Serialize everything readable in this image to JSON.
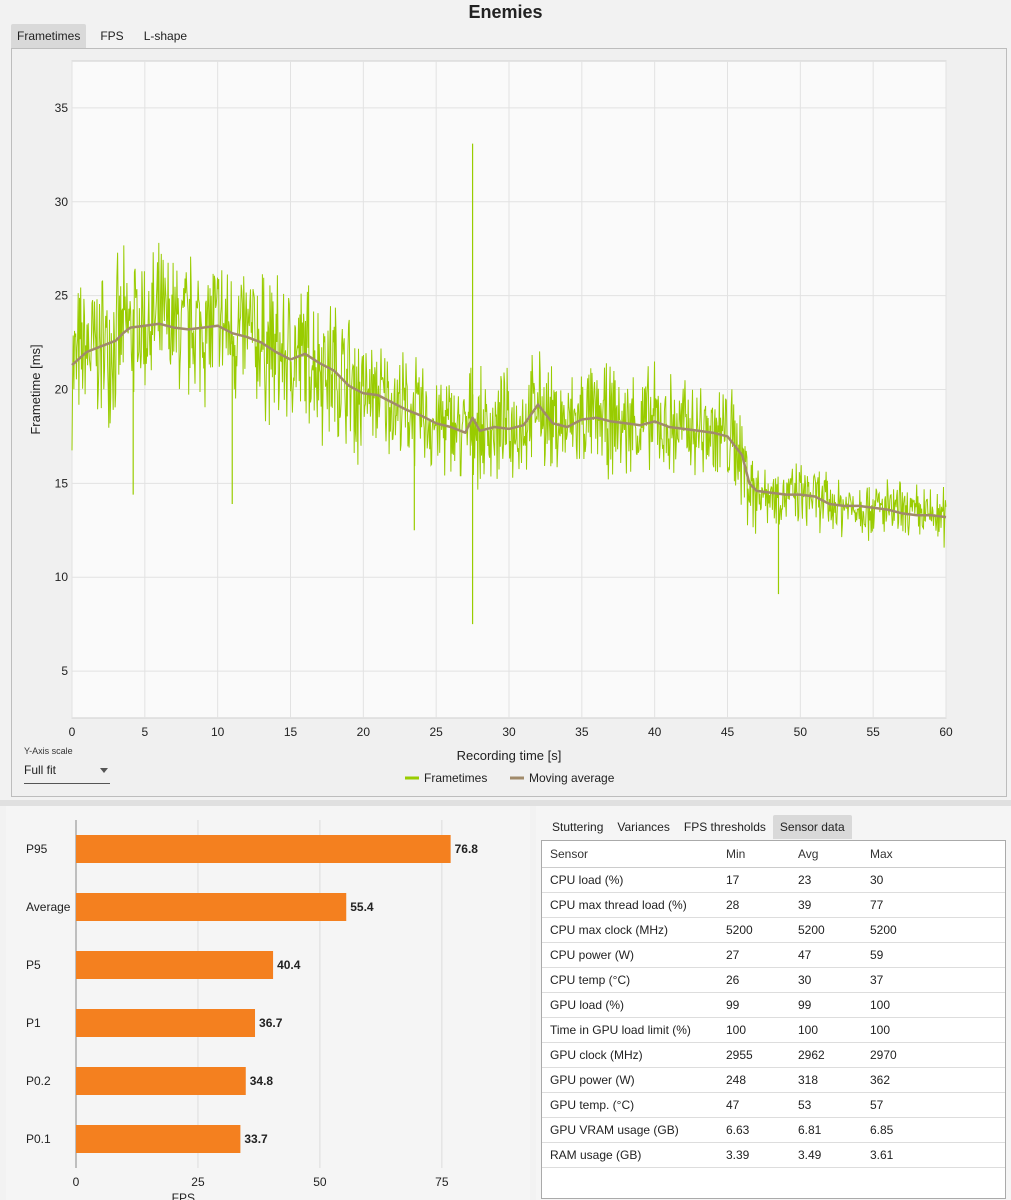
{
  "title": "Enemies",
  "top_tabs": [
    {
      "label": "Frametimes",
      "active": true
    },
    {
      "label": "FPS",
      "active": false
    },
    {
      "label": "L-shape",
      "active": false
    }
  ],
  "y_axis_scale": {
    "label": "Y-Axis scale",
    "value": "Full fit"
  },
  "colors": {
    "frametimes": "#99cc00",
    "moving_average": "#a08a6a",
    "bars": "#f4801f"
  },
  "chart_data": [
    {
      "type": "line",
      "xlabel": "Recording time [s]",
      "ylabel": "Frametime [ms]",
      "xlim": [
        0,
        60
      ],
      "ylim": [
        2.5,
        37.5
      ],
      "x_ticks": [
        0,
        5,
        10,
        15,
        20,
        25,
        30,
        35,
        40,
        45,
        50,
        55,
        60
      ],
      "y_ticks": [
        5,
        10,
        15,
        20,
        25,
        30,
        35
      ],
      "grid": true,
      "legend": "bottom-center",
      "series": [
        {
          "name": "Frametimes",
          "color": "#99cc00",
          "x": [
            0,
            1,
            2,
            3,
            3.5,
            4,
            5,
            6,
            7,
            8,
            9,
            10,
            11,
            12,
            13,
            14,
            15,
            16,
            17,
            18,
            19,
            20,
            21,
            22,
            23,
            24,
            25,
            26,
            27,
            27.5,
            28,
            29,
            30,
            31,
            32,
            33,
            34,
            35,
            36,
            37,
            38,
            39,
            40,
            41,
            42,
            43,
            44,
            45,
            46,
            46.5,
            47,
            48,
            49,
            50,
            51,
            52,
            53,
            54,
            55,
            56,
            57,
            58,
            59,
            60
          ],
          "y": [
            21.3,
            22.0,
            22.3,
            22.6,
            23.0,
            23.3,
            23.4,
            23.5,
            23.3,
            23.2,
            23.3,
            23.4,
            23.0,
            22.8,
            22.5,
            22.0,
            21.6,
            21.9,
            21.4,
            21.0,
            20.2,
            19.8,
            19.7,
            19.3,
            18.9,
            18.6,
            18.2,
            18.0,
            17.7,
            18.5,
            17.8,
            18.0,
            17.9,
            18.1,
            19.2,
            18.2,
            18.0,
            18.4,
            18.5,
            18.3,
            18.2,
            18.1,
            18.3,
            18.0,
            17.9,
            17.8,
            17.7,
            17.5,
            16.5,
            15.0,
            14.6,
            14.5,
            14.4,
            14.4,
            14.3,
            13.9,
            13.8,
            13.8,
            13.7,
            13.6,
            13.4,
            13.3,
            13.3,
            13.2
          ]
        },
        {
          "name": "Moving average",
          "color": "#a08a6a",
          "x": [
            0,
            1,
            2,
            3,
            3.5,
            4,
            5,
            6,
            7,
            8,
            9,
            10,
            11,
            12,
            13,
            14,
            15,
            16,
            17,
            18,
            19,
            20,
            21,
            22,
            23,
            24,
            25,
            26,
            27,
            27.5,
            28,
            29,
            30,
            31,
            32,
            33,
            34,
            35,
            36,
            37,
            38,
            39,
            40,
            41,
            42,
            43,
            44,
            45,
            46,
            46.5,
            47,
            48,
            49,
            50,
            51,
            52,
            53,
            54,
            55,
            56,
            57,
            58,
            59,
            60
          ],
          "y": [
            21.3,
            22.0,
            22.3,
            22.6,
            23.0,
            23.3,
            23.4,
            23.5,
            23.3,
            23.2,
            23.3,
            23.4,
            23.0,
            22.8,
            22.5,
            22.0,
            21.6,
            21.9,
            21.4,
            21.0,
            20.2,
            19.8,
            19.7,
            19.3,
            18.9,
            18.6,
            18.2,
            18.0,
            17.7,
            18.5,
            17.8,
            18.0,
            17.9,
            18.1,
            19.2,
            18.2,
            18.0,
            18.4,
            18.5,
            18.3,
            18.2,
            18.1,
            18.3,
            18.0,
            17.9,
            17.8,
            17.7,
            17.5,
            16.5,
            15.0,
            14.6,
            14.5,
            14.4,
            14.4,
            14.3,
            13.9,
            13.8,
            13.8,
            13.7,
            13.6,
            13.4,
            13.3,
            13.3,
            13.2
          ]
        }
      ]
    },
    {
      "type": "bar",
      "orientation": "horizontal",
      "categories": [
        "P95",
        "Average",
        "P5",
        "P1",
        "P0.2",
        "P0.1"
      ],
      "values": [
        76.8,
        55.4,
        40.4,
        36.7,
        34.8,
        33.7
      ],
      "xlabel": "FPS",
      "xlim": [
        0,
        82
      ],
      "x_ticks": [
        0,
        25,
        50,
        75
      ],
      "grid": true
    }
  ],
  "sensor_tabs": [
    {
      "label": "Stuttering",
      "active": false
    },
    {
      "label": "Variances",
      "active": false
    },
    {
      "label": "FPS thresholds",
      "active": false
    },
    {
      "label": "Sensor data",
      "active": true
    }
  ],
  "sensor_table": {
    "headers": [
      "Sensor",
      "Min",
      "Avg",
      "Max"
    ],
    "rows": [
      [
        "CPU load (%)",
        "17",
        "23",
        "30"
      ],
      [
        "CPU max thread load (%)",
        "28",
        "39",
        "77"
      ],
      [
        "CPU max clock (MHz)",
        "5200",
        "5200",
        "5200"
      ],
      [
        "CPU power (W)",
        "27",
        "47",
        "59"
      ],
      [
        "CPU temp (°C)",
        "26",
        "30",
        "37"
      ],
      [
        "GPU load (%)",
        "99",
        "99",
        "100"
      ],
      [
        "Time in GPU load limit (%)",
        "100",
        "100",
        "100"
      ],
      [
        "GPU clock (MHz)",
        "2955",
        "2962",
        "2970"
      ],
      [
        "GPU power (W)",
        "248",
        "318",
        "362"
      ],
      [
        "GPU temp. (°C)",
        "47",
        "53",
        "57"
      ],
      [
        "GPU VRAM usage (GB)",
        "6.63",
        "6.81",
        "6.85"
      ],
      [
        "RAM usage (GB)",
        "3.39",
        "3.49",
        "3.61"
      ]
    ]
  }
}
